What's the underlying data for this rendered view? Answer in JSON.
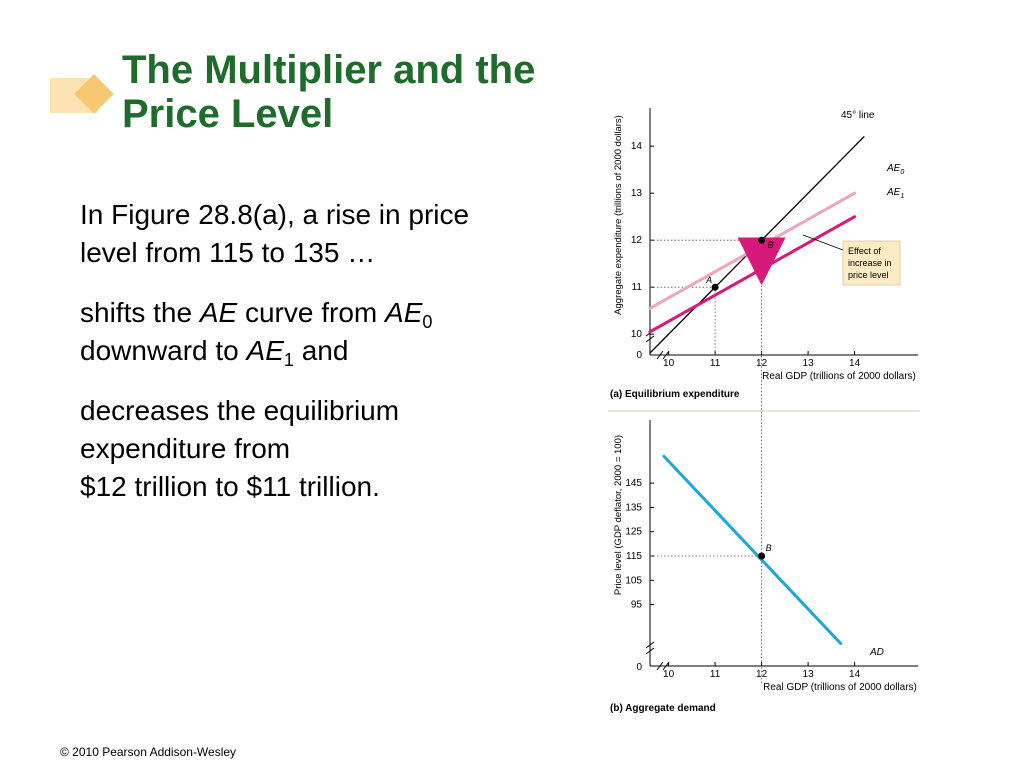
{
  "title": "The Multiplier and the Price Level",
  "paragraphs": {
    "p1": "In Figure 28.8(a), a rise in price level from 115 to 135 …",
    "p2_a": "shifts the ",
    "p2_ae": "AE",
    "p2_b": " curve from ",
    "p2_ae0": "AE",
    "p2_ae0_sub": "0",
    "p2_c": " downward to ",
    "p2_ae1": "AE",
    "p2_ae1_sub": "1",
    "p2_d": " and",
    "p3_line1": "decreases the equilibrium expenditure from",
    "p3_line2": "$12 trillion to $11 trillion."
  },
  "footer": "© 2010 Pearson Addison-Wesley",
  "colors": {
    "title": "#1e6b2c",
    "ae0": "#f2a3c0",
    "ae1": "#d6197a",
    "ad": "#1aa6e0",
    "deco_light": "#fde3b3",
    "deco_dark": "#f6c871"
  },
  "chart_data": [
    {
      "type": "line",
      "panel_label": "(a) Equilibrium expenditure",
      "xlabel": "Real GDP (trillions of 2000 dollars)",
      "ylabel": "Aggregate expenditure (trillions of 2000 dollars)",
      "x_ticks": [
        "10",
        "11",
        "12",
        "13",
        "14"
      ],
      "y_ticks": [
        "10",
        "11",
        "12",
        "13",
        "14"
      ],
      "origin_label": "0",
      "xlim": [
        9.6,
        14.2
      ],
      "ylim": [
        9.6,
        14.2
      ],
      "series": [
        {
          "name": "45° line",
          "x": [
            9.6,
            14.2
          ],
          "y": [
            9.6,
            14.2
          ]
        },
        {
          "name": "AE",
          "sub": "0",
          "x": [
            9.6,
            14.0
          ],
          "y": [
            10.55,
            13.0
          ]
        },
        {
          "name": "AE",
          "sub": "1",
          "x": [
            9.6,
            14.0
          ],
          "y": [
            10.05,
            12.5
          ]
        }
      ],
      "points": [
        {
          "label": "A",
          "x": 11,
          "y": 11
        },
        {
          "label": "B",
          "x": 12,
          "y": 12
        }
      ],
      "annotation": {
        "lines": [
          "Effect of",
          "increase in",
          "price level"
        ]
      }
    },
    {
      "type": "line",
      "panel_label": "(b) Aggregate demand",
      "xlabel": "Real GDP (trillions of 2000 dollars)",
      "ylabel": "Price level (GDP deflator, 2000 = 100)",
      "x_ticks": [
        "10",
        "11",
        "12",
        "13",
        "14"
      ],
      "y_ticks": [
        "95",
        "105",
        "115",
        "125",
        "135",
        "145"
      ],
      "origin_label": "0",
      "series": [
        {
          "name": "AD",
          "x": [
            9.9,
            13.7
          ],
          "y": [
            156,
            79
          ]
        }
      ],
      "points": [
        {
          "label": "B",
          "x": 12,
          "y": 115
        }
      ]
    }
  ]
}
